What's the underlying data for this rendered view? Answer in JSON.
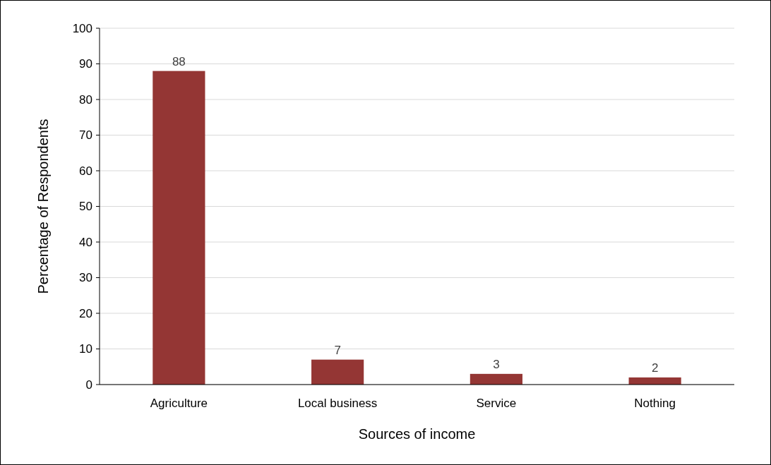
{
  "chart_data": {
    "type": "bar",
    "xlabel": "Sources of income",
    "ylabel": "Percentage of Respondents",
    "categories": [
      "Agriculture",
      "Local business",
      "Service",
      "Nothing"
    ],
    "values": [
      88,
      7,
      3,
      2
    ],
    "color": "#943634",
    "ylim": [
      0,
      100
    ],
    "yticks": [
      0,
      10,
      20,
      30,
      40,
      50,
      60,
      70,
      80,
      90,
      100
    ],
    "grid": "y",
    "data_labels": true
  }
}
